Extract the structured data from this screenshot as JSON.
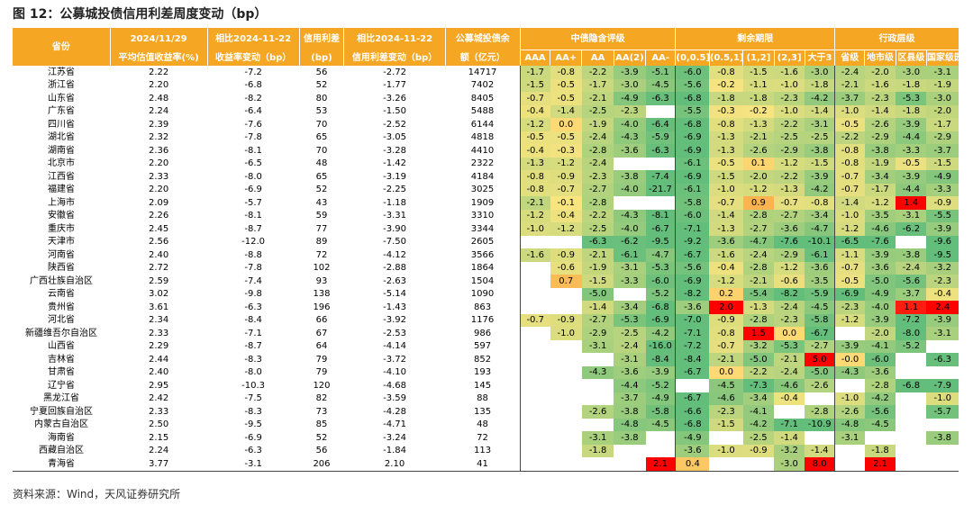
{
  "title": "图 12：公募城投债信用利差周度变动（bp）",
  "source": "资料来源：Wind，天风证券研究所",
  "headers": {
    "province": "省份",
    "yield_date": "2024/11/29",
    "yield_label": "平均估值收益率(%)",
    "yield_chg_date": "相比2024-11-22",
    "yield_chg_label": "收益率变动（bp）",
    "spread_top": "信用利差",
    "spread_unit": "(bp)",
    "spread_chg_date": "相比2024-11-22",
    "spread_chg_label": "信用利差变动（bp）",
    "balance_top": "公募城投债余",
    "balance_label": "额（亿元）",
    "group_rating": "中债隐含评级",
    "group_term": "剩余期限",
    "group_level": "行政层级",
    "ratings": [
      "AAA",
      "AA+",
      "AA",
      "AA(2)",
      "AA-"
    ],
    "terms": [
      "(0,0.5]",
      "(0.5,1]",
      "(1,2]",
      "(2,3]",
      "大于3"
    ],
    "levels": [
      "省级",
      "地市级",
      "区县级",
      "国家级园区"
    ]
  },
  "colors": {
    "header": "#F5A623",
    "positive_strong": "#FF0000",
    "positive": "#F8A23F",
    "zero": "#FFE680",
    "negative": "#63BE7B"
  },
  "rows": [
    {
      "province": "江苏省",
      "yield": "2.22",
      "yield_chg": "-7.2",
      "spread": "56",
      "spread_chg": "-2.72",
      "balance": "14717",
      "rating": [
        "-1.7",
        "-0.8",
        "-2.2",
        "-3.9",
        "-5.1"
      ],
      "term": [
        "-6.0",
        "-0.8",
        "-1.5",
        "-1.6",
        "-3.0"
      ],
      "level": [
        "-2.4",
        "-2.0",
        "-3.0",
        "-3.1"
      ]
    },
    {
      "province": "浙江省",
      "yield": "2.20",
      "yield_chg": "-6.8",
      "spread": "52",
      "spread_chg": "-1.77",
      "balance": "7402",
      "rating": [
        "-1.5",
        "-0.5",
        "-1.7",
        "-3.0",
        "-4.5"
      ],
      "term": [
        "-5.6",
        "-0.2",
        "-1.1",
        "-1.0",
        "-1.8"
      ],
      "level": [
        "-2.1",
        "-1.6",
        "-1.8",
        "-1.9"
      ]
    },
    {
      "province": "山东省",
      "yield": "2.48",
      "yield_chg": "-8.2",
      "spread": "80",
      "spread_chg": "-3.26",
      "balance": "8405",
      "rating": [
        "-0.7",
        "-0.5",
        "-2.1",
        "-4.9",
        "-6.3"
      ],
      "term": [
        "-6.8",
        "-1.8",
        "-1.8",
        "-2.3",
        "-4.2"
      ],
      "level": [
        "-3.7",
        "-2.3",
        "-5.3",
        "-3.0"
      ]
    },
    {
      "province": "广东省",
      "yield": "2.24",
      "yield_chg": "-6.4",
      "spread": "53",
      "spread_chg": "-1.50",
      "balance": "5488",
      "rating": [
        "-0.4",
        "-1.4",
        "-2.5",
        "-2.3",
        ""
      ],
      "term": [
        "-5.5",
        "-0.3",
        "-0.2",
        "-1.0",
        "-1.4"
      ],
      "level": [
        "-1.0",
        "-1.4",
        "-1.8",
        "-2.0"
      ]
    },
    {
      "province": "四川省",
      "yield": "2.39",
      "yield_chg": "-7.6",
      "spread": "70",
      "spread_chg": "-2.52",
      "balance": "6144",
      "rating": [
        "-1.2",
        "0.0",
        "-1.9",
        "-4.0",
        "-6.4"
      ],
      "term": [
        "-6.8",
        "-0.8",
        "-1.3",
        "-2.2",
        "-3.1"
      ],
      "level": [
        "-0.5",
        "-2.6",
        "-3.9",
        "-1.7"
      ]
    },
    {
      "province": "湖北省",
      "yield": "2.32",
      "yield_chg": "-7.8",
      "spread": "65",
      "spread_chg": "-3.05",
      "balance": "4818",
      "rating": [
        "-0.5",
        "-0.5",
        "-2.4",
        "-4.3",
        "-5.9"
      ],
      "term": [
        "-6.9",
        "-1.3",
        "-2.1",
        "-2.5",
        "-2.5"
      ],
      "level": [
        "-2.2",
        "-2.9",
        "-4.4",
        "-2.9"
      ]
    },
    {
      "province": "湖南省",
      "yield": "2.36",
      "yield_chg": "-8.1",
      "spread": "70",
      "spread_chg": "-3.28",
      "balance": "4410",
      "rating": [
        "-0.4",
        "-0.3",
        "-2.8",
        "-3.6",
        "-6.3"
      ],
      "term": [
        "-6.9",
        "-1.3",
        "-2.6",
        "-2.9",
        "-3.8"
      ],
      "level": [
        "-0.8",
        "-3.8",
        "-3.3",
        "-3.7"
      ]
    },
    {
      "province": "北京市",
      "yield": "2.20",
      "yield_chg": "-6.5",
      "spread": "48",
      "spread_chg": "-1.42",
      "balance": "2322",
      "rating": [
        "-1.3",
        "-1.2",
        "-2.4",
        "",
        ""
      ],
      "term": [
        "-6.1",
        "-0.5",
        "0.1",
        "-1.2",
        "-1.5"
      ],
      "level": [
        "-0.8",
        "-1.9",
        "-0.5",
        "-1.5"
      ]
    },
    {
      "province": "江西省",
      "yield": "2.33",
      "yield_chg": "-8.0",
      "spread": "65",
      "spread_chg": "-3.19",
      "balance": "4184",
      "rating": [
        "-0.8",
        "-0.9",
        "-2.3",
        "-3.8",
        "-7.4"
      ],
      "term": [
        "-6.9",
        "-1.5",
        "-2.0",
        "-2.2",
        "-3.9"
      ],
      "level": [
        "-0.7",
        "-3.4",
        "-3.9",
        "-4.9"
      ]
    },
    {
      "province": "福建省",
      "yield": "2.20",
      "yield_chg": "-6.9",
      "spread": "52",
      "spread_chg": "-2.25",
      "balance": "3025",
      "rating": [
        "-0.8",
        "-0.7",
        "-2.7",
        "-4.0",
        "-21.7"
      ],
      "term": [
        "-6.1",
        "-1.0",
        "-1.2",
        "-1.3",
        "-4.2"
      ],
      "level": [
        "-0.7",
        "-1.7",
        "-4.4",
        "-3.3"
      ]
    },
    {
      "province": "上海市",
      "yield": "2.09",
      "yield_chg": "-5.7",
      "spread": "43",
      "spread_chg": "-1.18",
      "balance": "1909",
      "rating": [
        "-2.1",
        "-0.1",
        "-2.8",
        "",
        ""
      ],
      "term": [
        "-5.8",
        "-0.7",
        "0.9",
        "-0.7",
        "-0.8"
      ],
      "level": [
        "-1.4",
        "-1.2",
        "1.4",
        "-0.9"
      ]
    },
    {
      "province": "安徽省",
      "yield": "2.26",
      "yield_chg": "-8.1",
      "spread": "59",
      "spread_chg": "-3.31",
      "balance": "3310",
      "rating": [
        "-1.2",
        "-0.4",
        "-2.2",
        "-4.3",
        "-8.1"
      ],
      "term": [
        "-6.0",
        "-1.4",
        "-2.8",
        "-2.7",
        "-3.4"
      ],
      "level": [
        "-1.0",
        "-3.5",
        "-3.1",
        "-5.5"
      ]
    },
    {
      "province": "重庆市",
      "yield": "2.45",
      "yield_chg": "-8.7",
      "spread": "77",
      "spread_chg": "-3.90",
      "balance": "3344",
      "rating": [
        "-1.0",
        "-1.2",
        "-2.5",
        "-4.0",
        "-6.7"
      ],
      "term": [
        "-7.1",
        "-1.3",
        "-2.7",
        "-3.6",
        "-4.7"
      ],
      "level": [
        "-1.2",
        "-4.6",
        "-6.2",
        "-3.9"
      ]
    },
    {
      "province": "天津市",
      "yield": "2.56",
      "yield_chg": "-12.0",
      "spread": "89",
      "spread_chg": "-7.50",
      "balance": "2605",
      "rating": [
        "",
        "",
        "-6.3",
        "-6.2",
        "-9.5"
      ],
      "term": [
        "-9.2",
        "-3.6",
        "-4.7",
        "-7.6",
        "-10.1"
      ],
      "level": [
        "-6.5",
        "-7.6",
        "",
        "-9.6"
      ]
    },
    {
      "province": "河南省",
      "yield": "2.40",
      "yield_chg": "-8.8",
      "spread": "72",
      "spread_chg": "-4.12",
      "balance": "3566",
      "rating": [
        "-1.6",
        "-0.9",
        "-2.1",
        "-6.1",
        "-4.7"
      ],
      "term": [
        "-6.7",
        "-1.6",
        "-2.4",
        "-2.9",
        "-6.1"
      ],
      "level": [
        "-1.1",
        "-3.9",
        "-3.8",
        "-9.5"
      ]
    },
    {
      "province": "陕西省",
      "yield": "2.72",
      "yield_chg": "-7.8",
      "spread": "102",
      "spread_chg": "-2.88",
      "balance": "1864",
      "rating": [
        "",
        "-0.6",
        "-1.9",
        "-3.1",
        "-5.3"
      ],
      "term": [
        "-5.6",
        "-0.4",
        "-2.8",
        "-1.2",
        "-3.6"
      ],
      "level": [
        "-0.7",
        "-3.6",
        "-2.4",
        "-3.2"
      ]
    },
    {
      "province": "广西壮族自治区",
      "yield": "2.59",
      "yield_chg": "-7.4",
      "spread": "93",
      "spread_chg": "-2.63",
      "balance": "1504",
      "rating": [
        "",
        "0.7",
        "-1.5",
        "-3.3",
        "-6.0"
      ],
      "term": [
        "-6.9",
        "-1.2",
        "-2.1",
        "-0.6",
        "-3.5"
      ],
      "level": [
        "-0.5",
        "-5.0",
        "-5.6",
        "-2.3"
      ]
    },
    {
      "province": "云南省",
      "yield": "3.02",
      "yield_chg": "-9.8",
      "spread": "138",
      "spread_chg": "-5.14",
      "balance": "1090",
      "rating": [
        "",
        "",
        "-5.0",
        "",
        "-5.2"
      ],
      "term": [
        "-8.2",
        "0.2",
        "-5.4",
        "-8.2",
        "-5.9"
      ],
      "level": [
        "-6.9",
        "-4.9",
        "-3.7",
        "-0.4"
      ]
    },
    {
      "province": "贵州省",
      "yield": "3.61",
      "yield_chg": "-6.3",
      "spread": "196",
      "spread_chg": "-1.43",
      "balance": "863",
      "rating": [
        "",
        "",
        "-1.4",
        "-3.4",
        "-6.8"
      ],
      "term": [
        "-3.6",
        "2.0",
        "-1.3",
        "-2.4",
        "-4.5"
      ],
      "level": [
        "-2.3",
        "-4.0",
        "1.1",
        "2.4"
      ]
    },
    {
      "province": "河北省",
      "yield": "2.34",
      "yield_chg": "-8.4",
      "spread": "66",
      "spread_chg": "-3.92",
      "balance": "1176",
      "rating": [
        "-0.7",
        "-0.9",
        "-2.7",
        "-5.3",
        "-6.9"
      ],
      "term": [
        "-7.0",
        "-0.9",
        "-2.8",
        "-2.3",
        "-5.8"
      ],
      "level": [
        "-1.2",
        "-3.9",
        "-7.2",
        "-3.9"
      ]
    },
    {
      "province": "新疆维吾尔自治区",
      "yield": "2.33",
      "yield_chg": "-7.1",
      "spread": "67",
      "spread_chg": "-2.53",
      "balance": "986",
      "rating": [
        "",
        "-1.0",
        "-2.9",
        "-2.5",
        "-4.2"
      ],
      "term": [
        "-7.1",
        "-0.8",
        "1.5",
        "0.0",
        "-6.7"
      ],
      "level": [
        "",
        "-2.0",
        "-8.0",
        "-3.1"
      ]
    },
    {
      "province": "山西省",
      "yield": "2.29",
      "yield_chg": "-8.7",
      "spread": "64",
      "spread_chg": "-4.14",
      "balance": "597",
      "rating": [
        "",
        "",
        "-3.1",
        "-2.4",
        "-16.0"
      ],
      "term": [
        "-7.2",
        "-0.7",
        "-3.2",
        "-5.3",
        "-2.7"
      ],
      "level": [
        "-3.9",
        "-4.1",
        "-5.2",
        ""
      ]
    },
    {
      "province": "吉林省",
      "yield": "2.44",
      "yield_chg": "-8.3",
      "spread": "79",
      "spread_chg": "-3.72",
      "balance": "852",
      "rating": [
        "",
        "",
        "",
        "-3.1",
        "-8.4"
      ],
      "term": [
        "-8.4",
        "-2.1",
        "-5.0",
        "-2.1",
        "5.0"
      ],
      "level": [
        "-0.0",
        "-6.0",
        "",
        "-6.3"
      ]
    },
    {
      "province": "甘肃省",
      "yield": "2.40",
      "yield_chg": "-8.0",
      "spread": "79",
      "spread_chg": "-4.10",
      "balance": "193",
      "rating": [
        "",
        "",
        "-4.3",
        "-3.6",
        "-3.9"
      ],
      "term": [
        "-6.7",
        "0.0",
        "-2.2",
        "-2.4",
        "-5.0"
      ],
      "level": [
        "-4.3",
        "-3.6",
        "",
        ""
      ]
    },
    {
      "province": "辽宁省",
      "yield": "2.95",
      "yield_chg": "-10.3",
      "spread": "120",
      "spread_chg": "-4.68",
      "balance": "145",
      "rating": [
        "",
        "",
        "",
        "-4.4",
        "-5.2"
      ],
      "term": [
        "",
        "-4.5",
        "-7.3",
        "-4.6",
        "-2.6"
      ],
      "level": [
        "",
        "-2.8",
        "-6.8",
        "-7.9"
      ]
    },
    {
      "province": "黑龙江省",
      "yield": "2.42",
      "yield_chg": "-7.5",
      "spread": "82",
      "spread_chg": "-3.59",
      "balance": "88",
      "rating": [
        "",
        "",
        "",
        "-3.7",
        "-4.9"
      ],
      "term": [
        "-6.7",
        "-4.6",
        "-3.4",
        "-0.4",
        ""
      ],
      "level": [
        "-1.0",
        "-4.2",
        "",
        "-1.0"
      ]
    },
    {
      "province": "宁夏回族自治区",
      "yield": "2.33",
      "yield_chg": "-8.3",
      "spread": "73",
      "spread_chg": "-4.28",
      "balance": "135",
      "rating": [
        "",
        "",
        "-2.6",
        "-3.8",
        "-5.8"
      ],
      "term": [
        "-6.6",
        "-2.3",
        "-4.1",
        "",
        "-2.8"
      ],
      "level": [
        "-2.6",
        "-5.6",
        "",
        "-5.7"
      ]
    },
    {
      "province": "内蒙古自治区",
      "yield": "2.50",
      "yield_chg": "-9.5",
      "spread": "85",
      "spread_chg": "-4.71",
      "balance": "48",
      "rating": [
        "",
        "",
        "",
        "-4.8",
        "-4.5"
      ],
      "term": [
        "-6.8",
        "-1.5",
        "-4.2",
        "-7.1",
        "-10.9"
      ],
      "level": [
        "-4.8",
        "-4.5",
        "",
        ""
      ]
    },
    {
      "province": "海南省",
      "yield": "2.15",
      "yield_chg": "-6.9",
      "spread": "52",
      "spread_chg": "-3.24",
      "balance": "72",
      "rating": [
        "",
        "",
        "-3.1",
        "-3.8",
        ""
      ],
      "term": [
        "-4.9",
        "",
        "-2.5",
        "-1.4",
        ""
      ],
      "level": [
        "-3.1",
        "",
        "",
        "-3.8"
      ]
    },
    {
      "province": "西藏自治区",
      "yield": "2.24",
      "yield_chg": "-6.3",
      "spread": "56",
      "spread_chg": "-1.84",
      "balance": "113",
      "rating": [
        "",
        "",
        "-1.8",
        "",
        ""
      ],
      "term": [
        "-3.6",
        "-1.0",
        "-0.9",
        "-3.2",
        "-1.4"
      ],
      "level": [
        "",
        "-1.8",
        "",
        ""
      ]
    },
    {
      "province": "青海省",
      "yield": "3.77",
      "yield_chg": "-3.1",
      "spread": "206",
      "spread_chg": "2.10",
      "balance": "41",
      "rating": [
        "",
        "",
        "",
        "",
        "2.1"
      ],
      "term": [
        "0.4",
        "",
        "",
        "-3.0",
        "8.0"
      ],
      "level": [
        "",
        "2.1",
        "",
        ""
      ]
    }
  ]
}
